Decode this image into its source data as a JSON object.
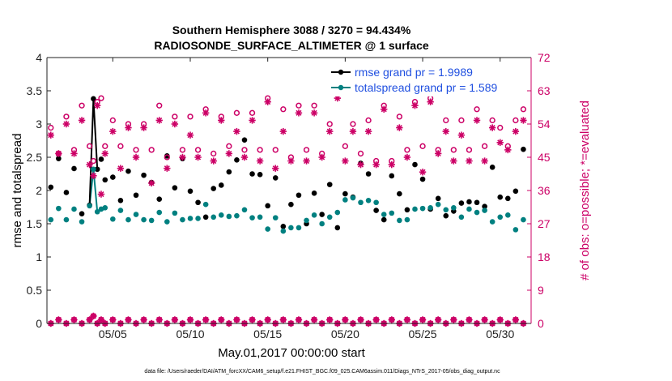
{
  "chart_data": {
    "type": "scatter",
    "title_line1": "Southern Hemisphere 3088 / 3270 = 94.434%",
    "title_line2": "RADIOSONDE_SURFACE_ALTIMETER @ 1 surface",
    "xlabel": "May.01,2017 00:00:00 start",
    "ylabel_left": "rmse and totalspread",
    "ylabel_right": "# of obs: o=possible; *=evaluated",
    "xlim": [
      0.75,
      32.0
    ],
    "ylim_left": [
      0,
      4
    ],
    "ylim_right": [
      0,
      72
    ],
    "x_ticks": [
      {
        "value": 5,
        "label": "05/05"
      },
      {
        "value": 10,
        "label": "05/10"
      },
      {
        "value": 15,
        "label": "05/15"
      },
      {
        "value": 20,
        "label": "05/20"
      },
      {
        "value": 25,
        "label": "05/25"
      },
      {
        "value": 30,
        "label": "05/30"
      }
    ],
    "y_ticks_left": [
      0,
      0.5,
      1,
      1.5,
      2,
      2.5,
      3,
      3.5,
      4
    ],
    "y_tick_labels_left": [
      "0",
      "0.5",
      "1",
      "1.5",
      "2",
      "2.5",
      "3",
      "3.5",
      "4"
    ],
    "y_ticks_right": [
      0,
      9,
      18,
      27,
      36,
      45,
      54,
      63,
      72
    ],
    "y_tick_labels_right": [
      "0",
      "9",
      "18",
      "27",
      "36",
      "45",
      "54",
      "63",
      "72"
    ],
    "legend": [
      {
        "label": "rmse grand pr = 1.9989",
        "color": "#000000"
      },
      {
        "label": "totalspread grand pr = 1.589",
        "color": "#008080"
      }
    ],
    "series": [
      {
        "name": "rmse",
        "color": "#000000",
        "axis": "left",
        "marker": "dot",
        "x": [
          1,
          1.5,
          2,
          2.5,
          3,
          3.5,
          3.75,
          4,
          4.25,
          4.5,
          5,
          5.5,
          6,
          6.5,
          7,
          7.5,
          8,
          8.5,
          9,
          9.5,
          10,
          10.5,
          11,
          11.5,
          12,
          12.5,
          13,
          13.5,
          14,
          14.5,
          15,
          15.5,
          16,
          16.5,
          17,
          17.5,
          18,
          18.5,
          19,
          19.5,
          20,
          20.5,
          21,
          21.5,
          22,
          22.5,
          23,
          23.5,
          24,
          24.5,
          25,
          25.5,
          26,
          26.5,
          27,
          27.5,
          28,
          28.5,
          29,
          29.5,
          30,
          30.5,
          31,
          31.5
        ],
        "values": [
          2.05,
          2.48,
          1.97,
          2.33,
          1.65,
          1.78,
          3.38,
          2.32,
          2.47,
          2.16,
          2.2,
          1.85,
          2.29,
          1.93,
          2.23,
          2.12,
          1.87,
          2.52,
          2.04,
          2.48,
          1.99,
          1.82,
          1.6,
          2.03,
          2.08,
          2.28,
          2.46,
          2.76,
          2.25,
          2.24,
          1.77,
          2.19,
          1.46,
          1.79,
          1.93,
          1.5,
          1.96,
          1.64,
          2.09,
          1.44,
          1.95,
          1.9,
          2.41,
          2.25,
          1.7,
          1.56,
          2.22,
          1.95,
          1.71,
          2.39,
          2.17,
          1.72,
          1.88,
          1.62,
          1.69,
          1.81,
          1.83,
          1.82,
          1.76,
          2.35,
          1.9,
          1.88,
          1.99,
          2.62
        ]
      },
      {
        "name": "totalspread",
        "color": "#008080",
        "axis": "left",
        "marker": "dot",
        "x": [
          1,
          1.5,
          2,
          2.5,
          3,
          3.5,
          3.75,
          4,
          4.25,
          4.5,
          5,
          5.5,
          6,
          6.5,
          7,
          7.5,
          8,
          8.5,
          9,
          9.5,
          10,
          10.5,
          11,
          11.5,
          12,
          12.5,
          13,
          13.5,
          14,
          14.5,
          15,
          15.5,
          16,
          16.5,
          17,
          17.5,
          18,
          18.5,
          19,
          19.5,
          20,
          20.5,
          21,
          21.5,
          22,
          22.5,
          23,
          23.5,
          24,
          24.5,
          25,
          25.5,
          26,
          26.5,
          27,
          27.5,
          28,
          28.5,
          29,
          29.5,
          30,
          30.5,
          31,
          31.5
        ],
        "values": [
          1.56,
          1.73,
          1.56,
          1.72,
          1.53,
          1.77,
          2.32,
          1.68,
          1.72,
          1.74,
          1.57,
          1.7,
          1.56,
          1.64,
          1.56,
          1.55,
          1.67,
          1.53,
          1.66,
          1.56,
          1.58,
          1.58,
          1.79,
          1.6,
          1.63,
          1.61,
          1.62,
          1.71,
          1.59,
          1.6,
          1.42,
          1.59,
          1.39,
          1.44,
          1.44,
          1.55,
          1.63,
          1.5,
          1.6,
          1.67,
          1.86,
          1.89,
          1.82,
          1.85,
          1.82,
          1.64,
          1.66,
          1.55,
          1.56,
          1.72,
          1.73,
          1.74,
          1.79,
          1.71,
          1.74,
          1.6,
          1.72,
          1.67,
          1.7,
          1.53,
          1.6,
          1.63,
          1.41,
          1.56
        ]
      },
      {
        "name": "obs possible",
        "color": "#cc0066",
        "axis": "right",
        "marker": "circle",
        "x": [
          1,
          1.5,
          2,
          2.5,
          3,
          3.5,
          3.75,
          4,
          4.25,
          4.5,
          5,
          5.5,
          6,
          6.5,
          7,
          7.5,
          8,
          8.5,
          9,
          9.5,
          10,
          10.5,
          11,
          11.5,
          12,
          12.5,
          13,
          13.5,
          14,
          14.5,
          15,
          15.5,
          16,
          16.5,
          17,
          17.5,
          18,
          18.5,
          19,
          19.5,
          20,
          20.5,
          21,
          21.5,
          22,
          22.5,
          23,
          23.5,
          24,
          24.5,
          25,
          25.5,
          26,
          26.5,
          27,
          27.5,
          28,
          28.5,
          29,
          29.5,
          30,
          30.5,
          31,
          31.5
        ],
        "values": [
          53,
          46,
          56,
          47,
          59,
          48,
          44,
          60,
          61,
          48,
          55,
          48,
          54,
          47,
          54,
          47,
          59,
          45,
          56,
          47,
          56,
          47,
          58,
          46,
          56,
          48,
          57,
          47,
          57,
          47,
          61,
          47,
          58,
          45,
          59,
          47,
          59,
          46,
          54,
          62,
          48,
          54,
          46,
          55,
          44,
          59,
          44,
          56,
          47,
          60,
          48,
          61,
          47,
          55,
          47,
          55,
          47,
          58,
          48,
          55,
          53,
          48,
          55,
          58
        ]
      },
      {
        "name": "obs evaluated",
        "color": "#cc0066",
        "axis": "right",
        "marker": "asterisk",
        "x": [
          1,
          1.5,
          2,
          2.5,
          3,
          3.5,
          3.75,
          4,
          4.25,
          4.5,
          5,
          5.5,
          6,
          6.5,
          7,
          7.5,
          8,
          8.5,
          9,
          9.5,
          10,
          10.5,
          11,
          11.5,
          12,
          12.5,
          13,
          13.5,
          14,
          14.5,
          15,
          15.5,
          16,
          16.5,
          17,
          17.5,
          18,
          18.5,
          19,
          19.5,
          20,
          20.5,
          21,
          21.5,
          22,
          22.5,
          23,
          23.5,
          24,
          24.5,
          25,
          25.5,
          26,
          26.5,
          27,
          27.5,
          28,
          28.5,
          29,
          29.5,
          30,
          30.5,
          31,
          31.5
        ],
        "values": [
          51,
          46,
          54,
          46,
          55,
          43,
          40,
          59,
          35,
          46,
          52,
          42,
          53,
          45,
          53,
          38,
          55,
          42,
          54,
          45,
          51,
          45,
          57,
          44,
          55,
          46,
          52,
          45,
          55,
          44,
          60,
          42,
          52,
          44,
          57,
          44,
          57,
          45,
          52,
          61,
          44,
          52,
          43,
          52,
          43,
          58,
          43,
          53,
          45,
          59,
          41,
          60,
          46,
          52,
          44,
          51,
          44,
          55,
          44,
          53,
          49,
          47,
          52,
          55
        ]
      },
      {
        "name": "obs possible low",
        "color": "#cc0066",
        "axis": "right",
        "marker": "circle",
        "x": [
          1,
          1.5,
          2,
          2.5,
          3,
          3.5,
          3.75,
          4,
          4.25,
          4.5,
          5,
          5.5,
          6,
          6.5,
          7,
          7.5,
          8,
          8.5,
          9,
          9.5,
          10,
          10.5,
          11,
          11.5,
          12,
          12.5,
          13,
          13.5,
          14,
          14.5,
          15,
          15.5,
          16,
          16.5,
          17,
          17.5,
          18,
          18.5,
          19,
          19.5,
          20,
          20.5,
          21,
          21.5,
          22,
          22.5,
          23,
          23.5,
          24,
          24.5,
          25,
          25.5,
          26,
          26.5,
          27,
          27.5,
          28,
          28.5,
          29,
          29.5,
          30,
          30.5,
          31,
          31.5
        ],
        "values": [
          0,
          1,
          0,
          1,
          0,
          1,
          2,
          0,
          1,
          0,
          1,
          0,
          1,
          0,
          1,
          0,
          1,
          0,
          1,
          0,
          1,
          0,
          1,
          0,
          1,
          0,
          1,
          0,
          1,
          0,
          1,
          0,
          1,
          0,
          1,
          0,
          1,
          0,
          1,
          0,
          1,
          0,
          1,
          0,
          1,
          0,
          1,
          0,
          1,
          0,
          1,
          0,
          1,
          0,
          1,
          0,
          1,
          0,
          1,
          0,
          1,
          0,
          1,
          0
        ]
      },
      {
        "name": "obs evaluated low",
        "color": "#cc0066",
        "axis": "right",
        "marker": "asterisk",
        "x": [
          1,
          1.5,
          2,
          2.5,
          3,
          3.5,
          3.75,
          4,
          4.25,
          4.5,
          5,
          5.5,
          6,
          6.5,
          7,
          7.5,
          8,
          8.5,
          9,
          9.5,
          10,
          10.5,
          11,
          11.5,
          12,
          12.5,
          13,
          13.5,
          14,
          14.5,
          15,
          15.5,
          16,
          16.5,
          17,
          17.5,
          18,
          18.5,
          19,
          19.5,
          20,
          20.5,
          21,
          21.5,
          22,
          22.5,
          23,
          23.5,
          24,
          24.5,
          25,
          25.5,
          26,
          26.5,
          27,
          27.5,
          28,
          28.5,
          29,
          29.5,
          30,
          30.5,
          31,
          31.5
        ],
        "values": [
          0,
          1,
          0,
          1,
          0,
          1,
          2,
          0,
          1,
          0,
          1,
          0,
          1,
          0,
          1,
          0,
          1,
          0,
          1,
          0,
          1,
          0,
          1,
          0,
          1,
          0,
          1,
          0,
          1,
          0,
          1,
          0,
          1,
          0,
          1,
          0,
          1,
          0,
          1,
          0,
          1,
          0,
          1,
          0,
          1,
          0,
          1,
          0,
          1,
          0,
          1,
          0,
          1,
          0,
          1,
          0,
          1,
          0,
          1,
          0,
          1,
          0,
          1,
          0
        ]
      }
    ],
    "line_segment": {
      "x": [
        3.5,
        3.75,
        4
      ],
      "rmse": [
        1.78,
        3.38,
        2.32
      ],
      "totalspread": [
        1.77,
        2.32,
        1.68
      ]
    },
    "footer": "data file: /Users/raeder/DAI/ATM_forcXX/CAM6_setup/f.e21.FHIST_BGC.f09_025.CAM6assim.011/Diags_NTrS_2017-05/obs_diag_output.nc"
  }
}
